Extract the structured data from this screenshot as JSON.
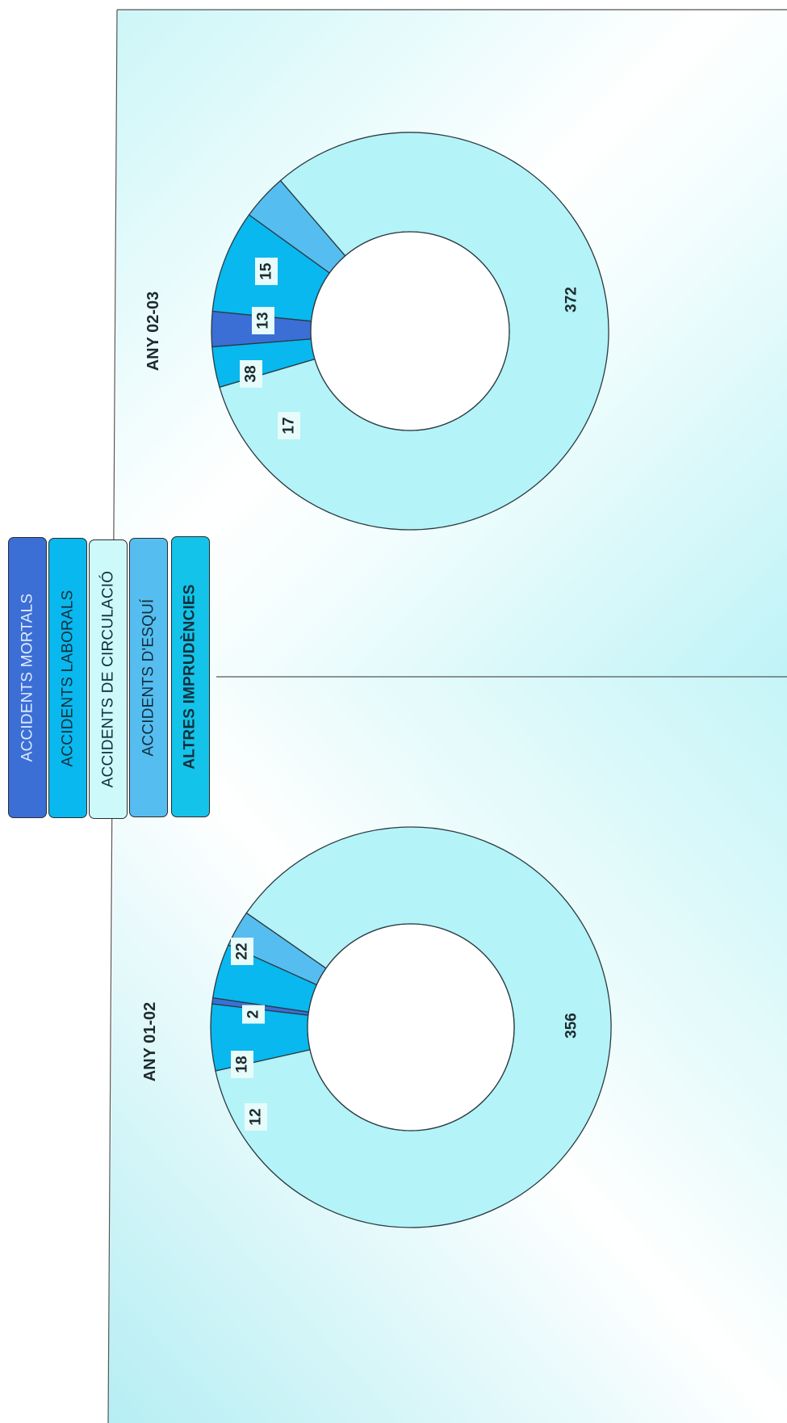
{
  "legend": {
    "items": [
      {
        "label": "ACCIDENTS MORTALS",
        "color": "#3b6fd6",
        "text_color": "#dfe9ff",
        "bold": false
      },
      {
        "label": "ACCIDENTS LABORALS",
        "color": "#08b8ee",
        "text_color": "#10303c",
        "bold": false
      },
      {
        "label": "ACCIDENTS DE CIRCULACIÓ",
        "color": "#cdf9fb",
        "text_color": "#10303c",
        "bold": false
      },
      {
        "label": "ACCIDENTS D'ESQUÍ",
        "color": "#56bdf0",
        "text_color": "#10303c",
        "bold": false
      },
      {
        "label": "ALTRES IMPRUDÈNCIES",
        "color": "#14c3e9",
        "text_color": "#10303c",
        "bold": true
      }
    ]
  },
  "chart_data": [
    {
      "type": "donut",
      "title": "ANY 01-02",
      "slices": [
        {
          "category": "ACCIDENTS LABORALS",
          "value": 22,
          "label": "22",
          "color": "#08b8ee"
        },
        {
          "category": "ACCIDENTS MORTALS",
          "value": 2,
          "label": "2",
          "color": "#3b6fd6"
        },
        {
          "category": "ACCIDENTS LABORALS",
          "value": 18,
          "label": "18",
          "color": "#08b8ee"
        },
        {
          "category": "ACCIDENTS D'ESQUÍ",
          "value": 12,
          "label": "12",
          "color": "#56bdf0"
        },
        {
          "category": "ACCIDENTS DE CIRCULACIÓ",
          "value": 356,
          "label": "356",
          "color": "#b4f3f8"
        }
      ]
    },
    {
      "type": "donut",
      "title": "ANY 02-03",
      "slices": [
        {
          "category": "ACCIDENTS LABORALS",
          "value": 15,
          "label": "15",
          "color": "#08b8ee"
        },
        {
          "category": "ACCIDENTS MORTALS",
          "value": 13,
          "label": "13",
          "color": "#3b6fd6"
        },
        {
          "category": "ACCIDENTS LABORALS",
          "value": 38,
          "label": "38",
          "color": "#08b8ee"
        },
        {
          "category": "ACCIDENTS D'ESQUÍ",
          "value": 17,
          "label": "17",
          "color": "#56bdf0"
        },
        {
          "category": "ACCIDENTS DE CIRCULACIÓ",
          "value": 372,
          "label": "372",
          "color": "#b4f3f8"
        }
      ]
    }
  ]
}
